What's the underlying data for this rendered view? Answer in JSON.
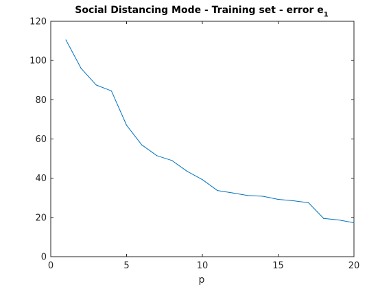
{
  "chart_data": {
    "type": "line",
    "title": "Social Distancing Mode - Training set - error e",
    "title_subscript": "1",
    "xlabel": "p",
    "ylabel": "",
    "xlim": [
      0,
      20
    ],
    "ylim": [
      0,
      120
    ],
    "xticks": [
      0,
      5,
      10,
      15,
      20
    ],
    "yticks": [
      0,
      20,
      40,
      60,
      80,
      100,
      120
    ],
    "grid": false,
    "box": true,
    "series": [
      {
        "color": "#0072bd",
        "x": [
          1,
          2,
          3,
          4,
          5,
          6,
          7,
          8,
          9,
          10,
          11,
          12,
          13,
          14,
          15,
          16,
          17,
          18,
          19,
          20
        ],
        "y": [
          110.5,
          96,
          87.5,
          84.5,
          67,
          57,
          51.5,
          49,
          43.5,
          39.3,
          33.7,
          32.5,
          31.2,
          30.8,
          29.2,
          28.5,
          27.5,
          19.5,
          18.7,
          17.3
        ]
      }
    ]
  }
}
